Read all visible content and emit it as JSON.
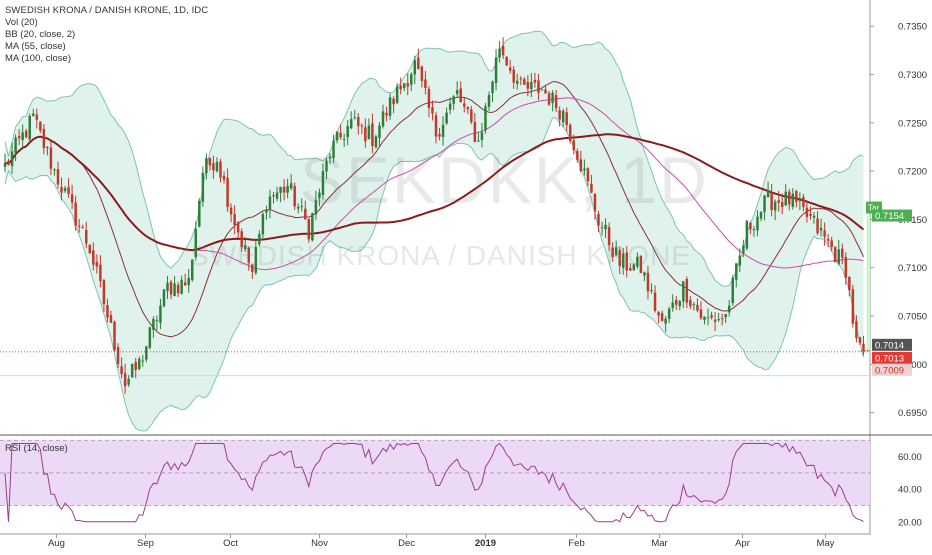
{
  "legend": {
    "title": "SWEDISH KRONA / DANISH KRONE, 1D, IDC",
    "items": [
      "Vol (20)",
      "BB (20, close, 2)",
      "MA (55, close)",
      "MA (100, close)"
    ]
  },
  "watermark": {
    "symbol": "SEKDKK, 1D",
    "name": "SWEDISH KRONA / DANISH KRONE"
  },
  "colors": {
    "up": "#2e7d3a",
    "down": "#c0392b",
    "bb_fill": "#dff2ec",
    "bb_line": "#7fc4b0",
    "ma_basis": "#8a2f3c",
    "ma55": "#d04bb0",
    "ma100": "#8b1a1a",
    "rsi_line": "#9c3d8e",
    "rsi_band": "#ecd9f5",
    "target": "#c8f7c8",
    "target_label": "#4caf50"
  },
  "chart_data": [
    {
      "type": "candlestick",
      "title": "SWEDISH KRONA / DANISH KRONE, 1D, IDC",
      "x_labels": [
        "Aug",
        "Sep",
        "Oct",
        "Nov",
        "Dec",
        "2019",
        "Feb",
        "Mar",
        "Apr",
        "May"
      ],
      "y_ticks": [
        0.695,
        0.7,
        0.705,
        0.71,
        0.715,
        0.72,
        0.725,
        0.73,
        0.735
      ],
      "ylim": [
        0.693,
        0.7375
      ],
      "anchors_close": [
        [
          0,
          0.7205
        ],
        [
          8,
          0.7255
        ],
        [
          14,
          0.72
        ],
        [
          24,
          0.712
        ],
        [
          34,
          0.698
        ],
        [
          38,
          0.7
        ],
        [
          46,
          0.708
        ],
        [
          52,
          0.7085
        ],
        [
          56,
          0.72
        ],
        [
          60,
          0.7215
        ],
        [
          64,
          0.716
        ],
        [
          70,
          0.7095
        ],
        [
          74,
          0.717
        ],
        [
          80,
          0.7185
        ],
        [
          86,
          0.714
        ],
        [
          92,
          0.722
        ],
        [
          98,
          0.725
        ],
        [
          104,
          0.7235
        ],
        [
          110,
          0.7275
        ],
        [
          116,
          0.731
        ],
        [
          122,
          0.724
        ],
        [
          128,
          0.728
        ],
        [
          134,
          0.723
        ],
        [
          140,
          0.733
        ],
        [
          146,
          0.7285
        ],
        [
          152,
          0.7285
        ],
        [
          158,
          0.726
        ],
        [
          162,
          0.722
        ],
        [
          168,
          0.715
        ],
        [
          174,
          0.7105
        ],
        [
          180,
          0.71
        ],
        [
          186,
          0.704
        ],
        [
          192,
          0.708
        ],
        [
          198,
          0.7045
        ],
        [
          204,
          0.705
        ],
        [
          210,
          0.714
        ],
        [
          216,
          0.717
        ],
        [
          222,
          0.717
        ],
        [
          228,
          0.715
        ],
        [
          234,
          0.712
        ],
        [
          238,
          0.71
        ],
        [
          241,
          0.702
        ],
        [
          243,
          0.7014
        ]
      ],
      "last_close": 0.7014,
      "markers": {
        "last": 0.7014,
        "current": 0.7013,
        "support": 0.7009,
        "target": 0.7154,
        "target_label": "Tar"
      },
      "price_labels": [
        "0.7014",
        "0.7013",
        "0.7009",
        "0.7154"
      ]
    },
    {
      "type": "line",
      "title": "RSI (14, close)",
      "y_ticks": [
        20.0,
        40.0,
        60.0
      ],
      "ylim": [
        15,
        72
      ],
      "band": [
        30,
        70
      ],
      "mid": 50
    }
  ]
}
